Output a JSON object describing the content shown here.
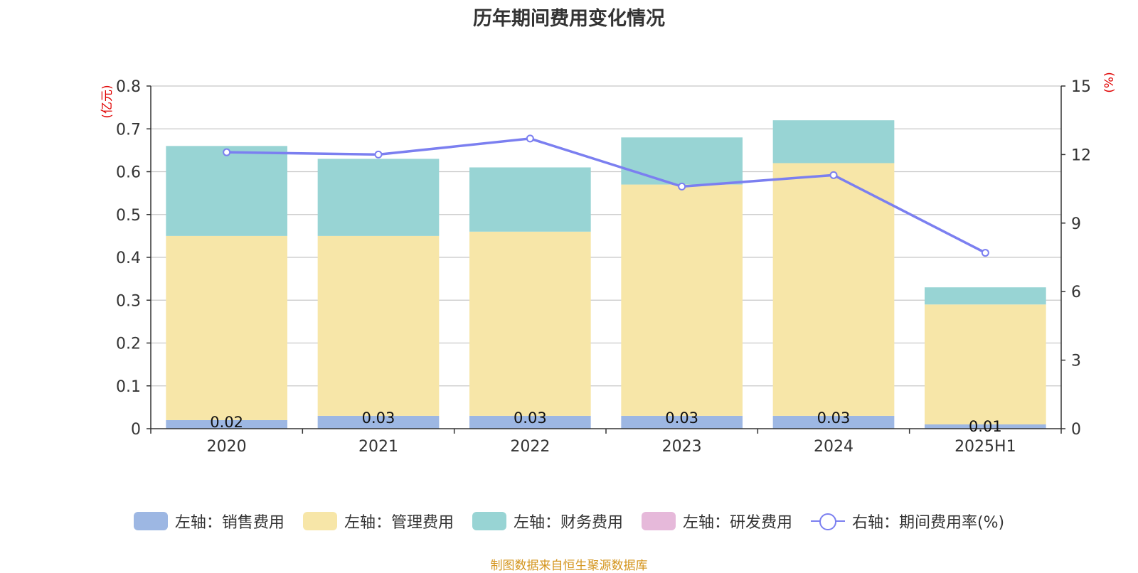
{
  "chart_data": {
    "type": "bar",
    "title": "历年期间费用变化情况",
    "categories": [
      "2020",
      "2021",
      "2022",
      "2023",
      "2024",
      "2025H1"
    ],
    "stacked": true,
    "left_axis": {
      "unit": "(亿元)",
      "ylim": [
        0,
        0.8
      ],
      "ticks": [
        "0",
        "0.1",
        "0.2",
        "0.3",
        "0.4",
        "0.5",
        "0.6",
        "0.7",
        "0.8"
      ]
    },
    "right_axis": {
      "unit": "(%)",
      "ylim": [
        0,
        15
      ],
      "ticks": [
        "0",
        "3",
        "6",
        "9",
        "12",
        "15"
      ]
    },
    "series": [
      {
        "name": "左轴：销售费用",
        "axis": "left",
        "type": "bar",
        "color": "#9db7e3",
        "values": [
          0.02,
          0.03,
          0.03,
          0.03,
          0.03,
          0.01
        ],
        "labels": [
          "0.02",
          "0.03",
          "0.03",
          "0.03",
          "0.03",
          "0.01"
        ]
      },
      {
        "name": "左轴：管理费用",
        "axis": "left",
        "type": "bar",
        "color": "#f7e6a8",
        "values": [
          0.43,
          0.42,
          0.43,
          0.54,
          0.59,
          0.28
        ]
      },
      {
        "name": "左轴：财务费用",
        "axis": "left",
        "type": "bar",
        "color": "#98d4d4",
        "values": [
          0.21,
          0.18,
          0.15,
          0.11,
          0.1,
          0.04
        ]
      },
      {
        "name": "左轴：研发费用",
        "axis": "left",
        "type": "bar",
        "color": "#e6b9da",
        "values": [
          0,
          0,
          0,
          0,
          0,
          0
        ]
      },
      {
        "name": "右轴：期间费用率(%)",
        "axis": "right",
        "type": "line",
        "color": "#7b7ff0",
        "values": [
          12.1,
          12.0,
          12.7,
          10.6,
          11.1,
          7.7
        ]
      }
    ],
    "grid": true,
    "legend": "bottom",
    "source_note": "制图数据来自恒生聚源数据库"
  }
}
